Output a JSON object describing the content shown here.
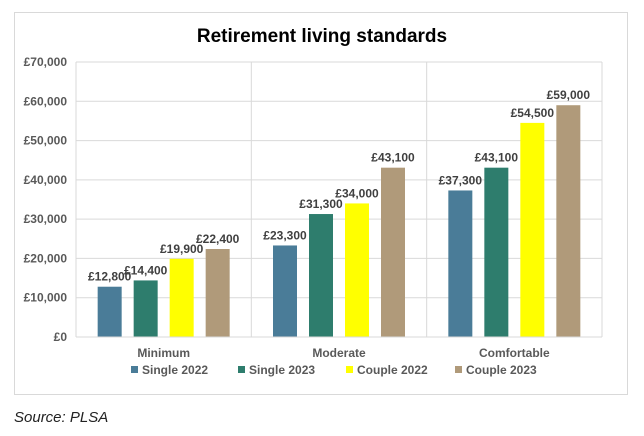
{
  "chart_data": {
    "type": "bar",
    "title": "Retirement living standards",
    "categories": [
      "Minimum",
      "Moderate",
      "Comfortable"
    ],
    "series": [
      {
        "name": "Single 2022",
        "color": "#4a7c98",
        "values": [
          12800,
          23300,
          37300
        ]
      },
      {
        "name": "Single 2023",
        "color": "#2e7d6d",
        "values": [
          14400,
          31300,
          43100
        ]
      },
      {
        "name": "Couple 2022",
        "color": "#ffff00",
        "values": [
          19900,
          34000,
          54500
        ]
      },
      {
        "name": "Couple 2023",
        "color": "#b09a7a",
        "values": [
          22400,
          43100,
          59000
        ]
      }
    ],
    "data_labels": [
      [
        "£12,800",
        "£23,300",
        "£37,300"
      ],
      [
        "£14,400",
        "£31,300",
        "£43,100"
      ],
      [
        "£19,900",
        "£34,000",
        "£54,500"
      ],
      [
        "£22,400",
        "£43,100",
        "£59,000"
      ]
    ],
    "ylim": [
      0,
      70000
    ],
    "yticks": [
      0,
      10000,
      20000,
      30000,
      40000,
      50000,
      60000,
      70000
    ],
    "ytick_labels": [
      "£0",
      "£10,000",
      "£20,000",
      "£30,000",
      "£40,000",
      "£50,000",
      "£60,000",
      "£70,000"
    ],
    "grid": true,
    "legend_position": "bottom"
  },
  "source": "Source: PLSA"
}
